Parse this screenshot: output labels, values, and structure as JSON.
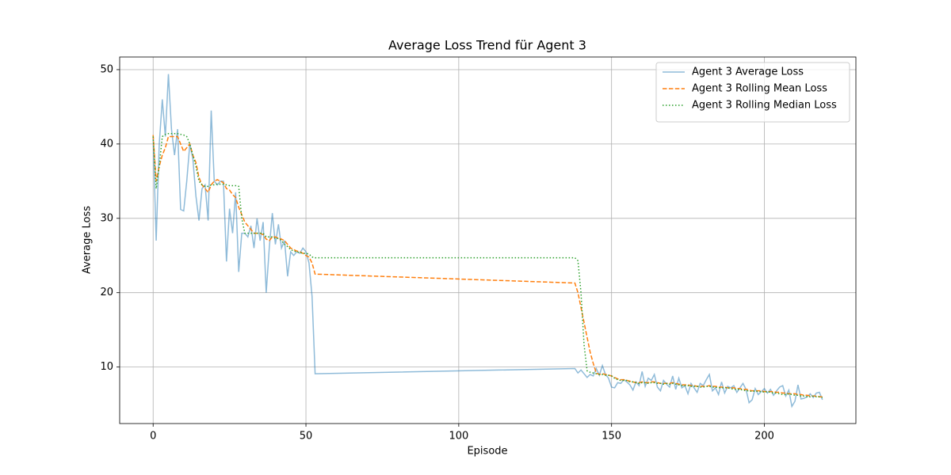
{
  "chart_data": {
    "type": "line",
    "title": "Average Loss Trend für Agent 3",
    "xlabel": "Episode",
    "ylabel": "Average Loss",
    "x": [
      0,
      1,
      2,
      3,
      4,
      5,
      6,
      7,
      8,
      9,
      10,
      11,
      12,
      13,
      14,
      15,
      16,
      17,
      18,
      19,
      20,
      21,
      22,
      23,
      24,
      25,
      26,
      27,
      28,
      29,
      30,
      31,
      32,
      33,
      34,
      35,
      36,
      37,
      38,
      39,
      40,
      41,
      42,
      43,
      44,
      45,
      46,
      47,
      48,
      49,
      50,
      51,
      52,
      53,
      138,
      139,
      140,
      141,
      142,
      143,
      144,
      145,
      146,
      147,
      148,
      149,
      150,
      151,
      152,
      153,
      154,
      155,
      156,
      157,
      158,
      159,
      160,
      161,
      162,
      163,
      164,
      165,
      166,
      167,
      168,
      169,
      170,
      171,
      172,
      173,
      174,
      175,
      176,
      177,
      178,
      179,
      180,
      181,
      182,
      183,
      184,
      185,
      186,
      187,
      188,
      189,
      190,
      191,
      192,
      193,
      194,
      195,
      196,
      197,
      198,
      199,
      200,
      201,
      202,
      203,
      204,
      205,
      206,
      207,
      208,
      209,
      210,
      211,
      212,
      213,
      214,
      215,
      216,
      217,
      218,
      219
    ],
    "series": [
      {
        "name": "Agent 3 Average Loss",
        "color": "#1f77b4",
        "opacity": 0.5,
        "dash": "solid",
        "values": [
          41,
          27,
          40,
          46,
          41,
          49.4,
          42,
          38.5,
          42,
          31.2,
          31,
          35,
          40,
          38,
          33,
          29.7,
          34,
          34.5,
          29.7,
          44.5,
          35,
          34.5,
          35,
          35,
          24.2,
          31.3,
          28,
          33.5,
          22.8,
          28,
          28,
          27.5,
          29,
          26,
          30,
          27,
          29.5,
          20,
          26,
          30.7,
          26.5,
          29.2,
          26,
          27,
          22.2,
          25.5,
          25,
          25.5,
          25.3,
          26,
          25.5,
          24,
          19.5,
          9.1,
          9.8,
          9.2,
          9.6,
          9.1,
          8.6,
          9,
          8.8,
          9.8,
          8.9,
          10.2,
          9,
          8.5,
          7.3,
          7.2,
          7.9,
          7.8,
          8.3,
          8,
          7.6,
          6.9,
          8,
          7.5,
          9.4,
          7.4,
          8.5,
          8.2,
          9,
          7.3,
          6.8,
          8.2,
          7.7,
          7.3,
          8.8,
          7,
          8.5,
          7.2,
          7.5,
          6.4,
          7.8,
          7.2,
          6.6,
          7.8,
          7.5,
          8.3,
          9,
          6.8,
          7.2,
          6.3,
          8,
          6.5,
          7.4,
          7.2,
          7.5,
          6.6,
          7.2,
          7.8,
          7,
          5.2,
          5.6,
          7.1,
          6.3,
          6.7,
          7.1,
          6.5,
          7,
          6.2,
          6.8,
          7.3,
          7.5,
          6.1,
          6.9,
          4.7,
          5.4,
          7.6,
          5.7,
          5.8,
          6,
          6.4,
          5.9,
          6.5,
          6.6,
          5.6
        ]
      },
      {
        "name": "Agent 3 Rolling Mean Loss",
        "color": "#ff7f0e",
        "opacity": 1,
        "dash": "dashed",
        "values": [
          41.2,
          35,
          37,
          38.5,
          39.5,
          41,
          41,
          41,
          41,
          40,
          39,
          39.5,
          40,
          38.5,
          37.5,
          35.5,
          34.5,
          34,
          33.5,
          34.5,
          35,
          35.2,
          35,
          34.8,
          34,
          33.8,
          33.2,
          32.8,
          31.5,
          30.5,
          29.5,
          29,
          28.5,
          28,
          28,
          28,
          27.8,
          27.2,
          27,
          27.5,
          27.5,
          27.3,
          27.2,
          27,
          26.5,
          26,
          25.8,
          25.6,
          25.5,
          25.3,
          25,
          24.8,
          24,
          22.5,
          21.3,
          20,
          18,
          16,
          14,
          12,
          10.5,
          9.2,
          9.0,
          9.1,
          9.0,
          8.9,
          8.8,
          8.6,
          8.4,
          8.3,
          8.3,
          8.2,
          8.1,
          8.0,
          7.9,
          7.9,
          8.0,
          7.9,
          7.9,
          8.0,
          8.0,
          7.9,
          7.8,
          7.8,
          7.8,
          7.8,
          7.9,
          7.8,
          7.7,
          7.6,
          7.6,
          7.6,
          7.5,
          7.5,
          7.4,
          7.4,
          7.4,
          7.4,
          7.5,
          7.4,
          7.4,
          7.3,
          7.3,
          7.3,
          7.2,
          7.2,
          7.2,
          7.1,
          7.1,
          7.0,
          7.0,
          6.9,
          6.8,
          6.8,
          6.8,
          6.8,
          6.7,
          6.7,
          6.7,
          6.7,
          6.6,
          6.6,
          6.5,
          6.5,
          6.4,
          6.4,
          6.4,
          6.3,
          6.3,
          6.2,
          6.2,
          6.1,
          6.1,
          6.1,
          6.0,
          6.0
        ]
      },
      {
        "name": "Agent 3 Rolling Median Loss",
        "color": "#2ca02c",
        "opacity": 1,
        "dash": "dotted",
        "values": [
          41,
          34,
          37,
          41,
          41.3,
          41.4,
          41.4,
          41.4,
          41.4,
          41.3,
          41.2,
          41,
          40,
          38.5,
          37,
          35,
          34.5,
          34.3,
          34.3,
          34.5,
          34.5,
          34.6,
          34.6,
          34.6,
          34.5,
          34.4,
          34.4,
          34.4,
          34.3,
          30,
          28,
          28,
          28,
          28,
          28,
          28,
          28,
          27.5,
          27.5,
          27.5,
          27.3,
          27.3,
          27,
          26.5,
          26.2,
          25.8,
          25.6,
          25.5,
          25.4,
          25.3,
          25.3,
          25.2,
          24.8,
          24.7,
          24.7,
          24.3,
          20,
          13,
          9.5,
          9.3,
          9.2,
          9.1,
          9.0,
          9.0,
          8.9,
          8.9,
          8.8,
          8.5,
          8.3,
          8.2,
          8.2,
          8.2,
          8.0,
          8.0,
          7.9,
          7.8,
          7.9,
          7.9,
          7.8,
          7.9,
          7.9,
          7.8,
          7.8,
          7.7,
          7.8,
          7.7,
          7.8,
          7.7,
          7.6,
          7.5,
          7.5,
          7.5,
          7.4,
          7.4,
          7.4,
          7.3,
          7.3,
          7.4,
          7.4,
          7.3,
          7.3,
          7.2,
          7.2,
          7.2,
          7.2,
          7.1,
          7.0,
          7.0,
          7.0,
          6.9,
          6.8,
          6.8,
          6.7,
          6.8,
          6.7,
          6.7,
          6.6,
          6.7,
          6.6,
          6.5,
          6.5,
          6.4,
          6.3,
          6.3,
          6.4,
          6.3,
          6.2,
          6.2,
          6.1,
          6.1,
          6.0,
          6.0,
          6.1,
          6.0,
          6.0,
          5.9
        ]
      }
    ],
    "xlim": [
      -10.95,
      229.95
    ],
    "ylim": [
      2.4,
      51.7
    ],
    "xticks": [
      0,
      50,
      100,
      150,
      200
    ],
    "yticks": [
      10,
      20,
      30,
      40,
      50
    ],
    "grid": true,
    "legend": "upper right"
  }
}
